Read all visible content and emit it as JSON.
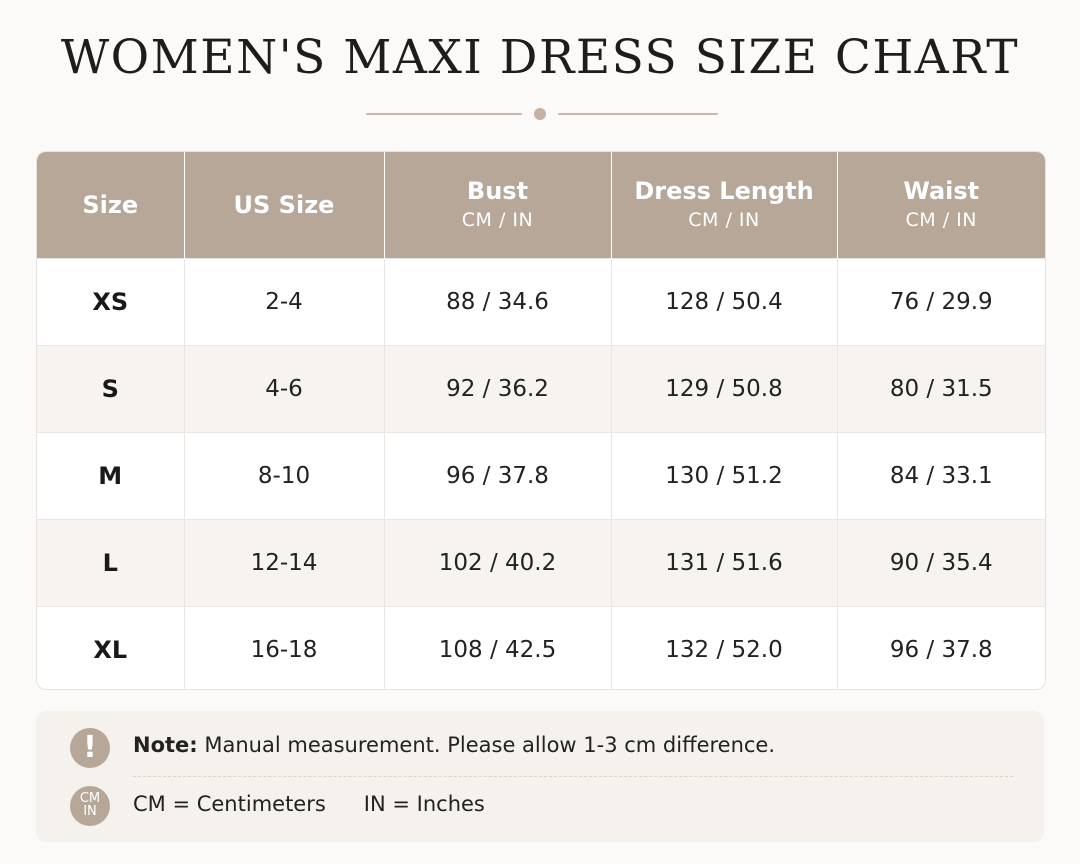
{
  "title": "WOMEN'S MAXI DRESS SIZE CHART",
  "colors": {
    "header_bg": "#b6a798",
    "accent": "#c4b2a3",
    "stripe": "#f7f4f0",
    "note_bg": "#f5f1ec"
  },
  "table": {
    "headers": [
      {
        "label": "Size",
        "unit": ""
      },
      {
        "label": "US Size",
        "unit": ""
      },
      {
        "label": "Bust",
        "unit": "CM / IN"
      },
      {
        "label": "Dress Length",
        "unit": "CM / IN"
      },
      {
        "label": "Waist",
        "unit": "CM / IN"
      }
    ],
    "rows": [
      [
        "XS",
        "2-4",
        "88 / 34.6",
        "128 / 50.4",
        "76 / 29.9"
      ],
      [
        "S",
        "4-6",
        "92 / 36.2",
        "129 / 50.8",
        "80 / 31.5"
      ],
      [
        "M",
        "8-10",
        "96 / 37.8",
        "130 / 51.2",
        "84 / 33.1"
      ],
      [
        "L",
        "12-14",
        "102 / 40.2",
        "131 / 51.6",
        "90 / 35.4"
      ],
      [
        "XL",
        "16-18",
        "108 / 42.5",
        "132 / 52.0",
        "96 / 37.8"
      ]
    ]
  },
  "note": {
    "icon": "exclamation-icon",
    "icon_glyph": "!",
    "label": "Note:",
    "text": "Manual measurement. Please allow 1-3 cm difference.",
    "units_icon": "cm-in-icon",
    "units_icon_top": "CM",
    "units_icon_bottom": "IN",
    "cm_text": "CM = Centimeters",
    "in_text": "IN = Inches"
  }
}
